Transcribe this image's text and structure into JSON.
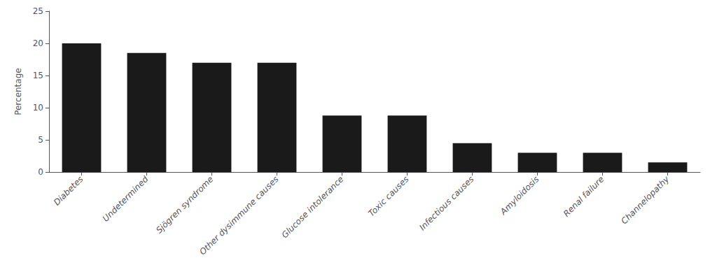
{
  "chart_data": {
    "type": "bar",
    "categories": [
      "Diabetes",
      "Undetermined",
      "Sjögren syndrome",
      "Other dysimmune causes",
      "Glucose intolerance",
      "Toxic causes",
      "Infectious causes",
      "Amyloidosis",
      "Renal failure",
      "Channelopathy"
    ],
    "values": [
      20.0,
      18.5,
      17.0,
      17.0,
      8.8,
      8.8,
      4.5,
      3.0,
      3.0,
      1.5
    ],
    "color": "#1a1a1a",
    "ylabel": "Percentage",
    "ylim": [
      0,
      25
    ],
    "yticks": [
      0,
      5,
      10,
      15,
      20,
      25
    ],
    "grid": false
  }
}
